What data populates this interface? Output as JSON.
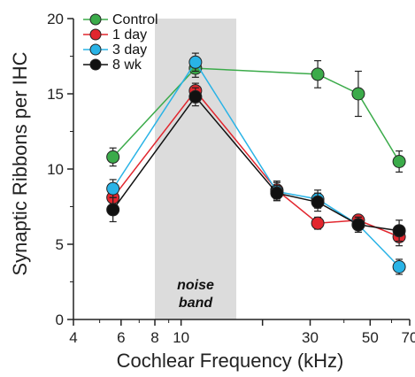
{
  "chart_data": {
    "type": "line",
    "xlabel": "Cochlear Frequency (kHz)",
    "ylabel": "Synaptic Ribbons per IHC",
    "x_scale": "log",
    "xlim": [
      4,
      70
    ],
    "ylim": [
      0,
      20
    ],
    "x_ticks": [
      4,
      6,
      8,
      10,
      20,
      30,
      50,
      70
    ],
    "x_tick_labels": [
      "4",
      "6",
      "8",
      "10",
      "",
      "30",
      "50",
      "70"
    ],
    "y_ticks": [
      0,
      5,
      10,
      15,
      20
    ],
    "y_tick_labels": [
      "0",
      "5",
      "10",
      "15",
      "20"
    ],
    "shaded_band": {
      "x_start": 8,
      "x_end": 16,
      "label_line1": "noise",
      "label_line2": "band",
      "color": "#dcdcdc"
    },
    "legend_position": "top-left",
    "series": [
      {
        "name": "Control",
        "color": "#3bab4a",
        "x": [
          5.6,
          11.3,
          32,
          45.2,
          64
        ],
        "y": [
          10.8,
          16.7,
          16.3,
          15.0,
          10.5
        ],
        "err": [
          0.6,
          0.6,
          0.9,
          1.5,
          0.7
        ]
      },
      {
        "name": "1 day",
        "color": "#e2262e",
        "x": [
          5.6,
          11.3,
          22.6,
          32,
          45.2,
          64
        ],
        "y": [
          8.1,
          15.2,
          8.6,
          6.4,
          6.6,
          5.5
        ],
        "err": [
          0.6,
          0.5,
          0.6,
          0.4,
          0.3,
          0.6
        ]
      },
      {
        "name": "3 day",
        "color": "#29b3e6",
        "x": [
          5.6,
          11.3,
          22.6,
          32,
          45.2,
          64
        ],
        "y": [
          8.7,
          17.1,
          8.5,
          8.0,
          6.3,
          3.5
        ],
        "err": [
          0.6,
          0.6,
          0.6,
          0.6,
          0.5,
          0.5
        ]
      },
      {
        "name": "8 wk",
        "color": "#111111",
        "x": [
          5.6,
          11.3,
          22.6,
          32,
          45.2,
          64
        ],
        "y": [
          7.3,
          14.8,
          8.4,
          7.8,
          6.3,
          5.9
        ],
        "err": [
          0.8,
          0.6,
          0.5,
          0.6,
          0.5,
          0.7
        ]
      }
    ]
  }
}
